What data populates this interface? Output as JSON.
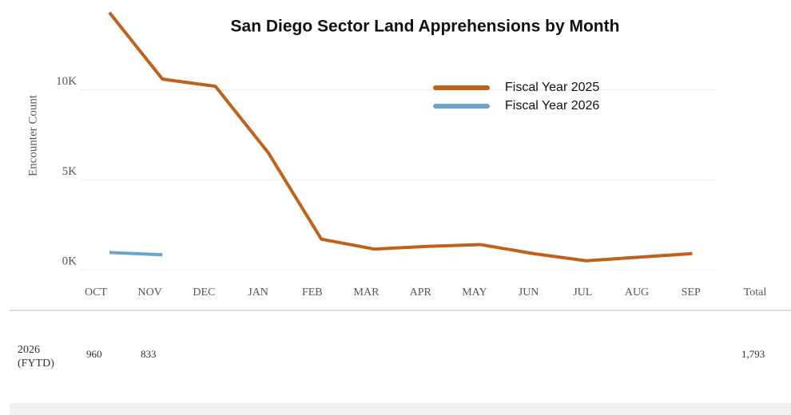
{
  "chart_data": {
    "type": "line",
    "title": "San Diego Sector Land Apprehensions by Month",
    "y_label": "Encounter Count",
    "categories": [
      "OCT",
      "NOV",
      "DEC",
      "JAN",
      "FEB",
      "MAR",
      "APR",
      "MAY",
      "JUN",
      "JUL",
      "AUG",
      "SEP"
    ],
    "series": [
      {
        "name": "Fiscal Year 2025",
        "color": "#c0601a",
        "values": [
          14300,
          10600,
          10200,
          6500,
          1700,
          1150,
          1300,
          1400,
          900,
          500,
          700,
          900
        ]
      },
      {
        "name": "Fiscal Year 2026",
        "color": "#6aa6cc",
        "values": [
          960,
          833,
          null,
          null,
          null,
          null,
          null,
          null,
          null,
          null,
          null,
          null
        ]
      }
    ],
    "ylim": [
      0,
      15000
    ],
    "yticks": [
      {
        "value": 0,
        "label": "0K"
      },
      {
        "value": 5000,
        "label": "5K"
      },
      {
        "value": 10000,
        "label": "10K"
      }
    ],
    "grid": true,
    "legend": "upper center"
  },
  "table": {
    "total_header": "Total",
    "rows": [
      {
        "label": "2026 (FYTD)",
        "cells": [
          "960",
          "833"
        ],
        "total": "1,793"
      }
    ]
  }
}
